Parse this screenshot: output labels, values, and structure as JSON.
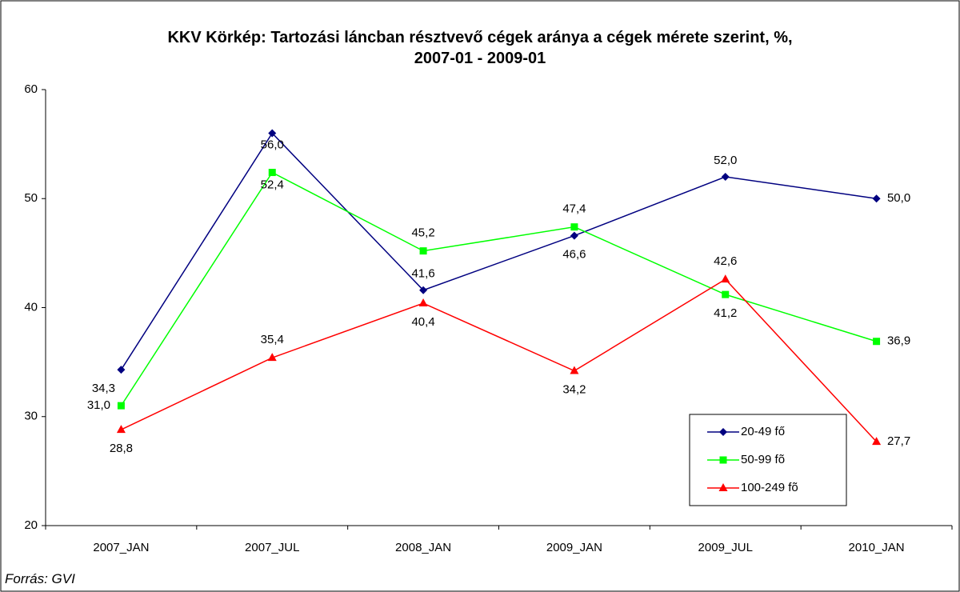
{
  "chart_data": {
    "type": "line",
    "title": "KKV Körkép: Tartozási láncban résztvevő cégek aránya a cégek mérete szerint, %, 2007-01 - 2009-01",
    "source": "Forrás: GVI",
    "categories": [
      "2007_JAN",
      "2007_JUL",
      "2008_JAN",
      "2009_JAN",
      "2009_JUL",
      "2010_JAN"
    ],
    "series": [
      {
        "name": "20-49 fő",
        "color": "#000080",
        "marker": "diamond",
        "values": [
          34.3,
          56.0,
          41.6,
          46.6,
          52.0,
          50.0
        ],
        "value_labels": [
          "34,3",
          "56,0",
          "41,6",
          "46,6",
          "52,0",
          "50,0"
        ]
      },
      {
        "name": "50-99 fõ",
        "color": "#00ff00",
        "marker": "square",
        "values": [
          31.0,
          52.4,
          45.2,
          47.4,
          41.2,
          36.9
        ],
        "value_labels": [
          "31,0",
          "52,4",
          "45,2",
          "47,4",
          "41,2",
          "36,9"
        ]
      },
      {
        "name": "100-249 fõ",
        "color": "#ff0000",
        "marker": "triangle",
        "values": [
          28.8,
          35.4,
          40.4,
          34.2,
          42.6,
          27.7
        ],
        "value_labels": [
          "28,8",
          "35,4",
          "40,4",
          "34,2",
          "42,6",
          "27,7"
        ]
      }
    ],
    "ylim": [
      20,
      60
    ],
    "yticks": [
      20,
      30,
      40,
      50,
      60
    ],
    "grid": false,
    "legend": "lower right"
  }
}
